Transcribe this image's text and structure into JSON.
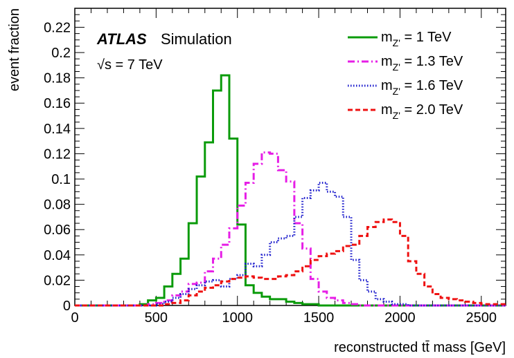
{
  "chart_data": {
    "type": "line",
    "style": "step-histogram",
    "xlabel": "reconstructed tt̄ mass [GeV]",
    "ylabel": "event fraction",
    "xlim": [
      0,
      2650
    ],
    "ylim": [
      0,
      0.235
    ],
    "x_ticks": [
      "0",
      "500",
      "1000",
      "1500",
      "2000",
      "2500"
    ],
    "y_ticks": [
      "0",
      "0.02",
      "0.04",
      "0.06",
      "0.08",
      "0.1",
      "0.12",
      "0.14",
      "0.16",
      "0.18",
      "0.2",
      "0.22"
    ],
    "grid": false,
    "legend_position": "top-right",
    "annotations": {
      "atlas": "ATLAS",
      "simulation": "Simulation",
      "energy": "√s = 7 TeV"
    },
    "bin_edges": [
      0,
      50,
      100,
      150,
      200,
      250,
      300,
      350,
      400,
      450,
      500,
      550,
      600,
      650,
      700,
      750,
      800,
      850,
      900,
      950,
      1000,
      1050,
      1100,
      1150,
      1200,
      1250,
      1300,
      1350,
      1400,
      1450,
      1500,
      1550,
      1600,
      1650,
      1700,
      1750,
      1800,
      1850,
      1900,
      1950,
      2000,
      2050,
      2100,
      2150,
      2200,
      2250,
      2300,
      2350,
      2400,
      2450,
      2500,
      2550,
      2600,
      2650
    ],
    "series": [
      {
        "name": "m_Z' = 1 TeV",
        "label_main": "m",
        "label_sub": "Z'",
        "label_rest": " = 1 TeV",
        "color": "#0a9b0a",
        "dash": "solid",
        "values": [
          0,
          0,
          0,
          0,
          0,
          0,
          0,
          0,
          0.001,
          0.004,
          0.006,
          0.015,
          0.025,
          0.037,
          0.065,
          0.102,
          0.129,
          0.17,
          0.182,
          0.132,
          0.064,
          0.016,
          0.01,
          0.007,
          0.005,
          0.005,
          0.003,
          0.002,
          0.001,
          0.001,
          0,
          0,
          0,
          0,
          0,
          0,
          0,
          0,
          0,
          0,
          0,
          0,
          0,
          0,
          0,
          0,
          0,
          0,
          0,
          0,
          0,
          0,
          0
        ]
      },
      {
        "name": "m_Z' = 1.3 TeV",
        "label_main": "m",
        "label_sub": "Z'",
        "label_rest": " = 1.3 TeV",
        "color": "#e61ee6",
        "dash": "dashdot",
        "values": [
          0,
          0,
          0,
          0,
          0,
          0,
          0,
          0,
          0,
          0.001,
          0.002,
          0.004,
          0.008,
          0.011,
          0.017,
          0.018,
          0.027,
          0.037,
          0.048,
          0.061,
          0.079,
          0.097,
          0.112,
          0.121,
          0.12,
          0.107,
          0.098,
          0.065,
          0.045,
          0.021,
          0.011,
          0.006,
          0.004,
          0.002,
          0.001,
          0,
          0,
          0,
          0,
          0,
          0,
          0,
          0,
          0,
          0,
          0,
          0,
          0,
          0,
          0,
          0,
          0,
          0
        ]
      },
      {
        "name": "m_Z' = 1.6 TeV",
        "label_main": "m",
        "label_sub": "Z'",
        "label_rest": " = 1.6 TeV",
        "color": "#1a1acc",
        "dash": "dotted",
        "values": [
          0,
          0,
          0,
          0,
          0,
          0,
          0,
          0,
          0,
          0,
          0.001,
          0.003,
          0.006,
          0.009,
          0.013,
          0.016,
          0.019,
          0.02,
          0.015,
          0.021,
          0.024,
          0.033,
          0.031,
          0.04,
          0.05,
          0.053,
          0.055,
          0.07,
          0.085,
          0.091,
          0.097,
          0.09,
          0.086,
          0.07,
          0.036,
          0.02,
          0.011,
          0.005,
          0.003,
          0.001,
          0.001,
          0,
          0,
          0,
          0,
          0,
          0,
          0,
          0,
          0,
          0,
          0,
          0
        ]
      },
      {
        "name": "m_Z' = 2.0 TeV",
        "label_main": "m",
        "label_sub": "Z'",
        "label_rest": " = 2.0 TeV",
        "color": "#ee1111",
        "dash": "dashed",
        "values": [
          0,
          0,
          0,
          0,
          0,
          0,
          0,
          0,
          0,
          0,
          0,
          0.001,
          0.002,
          0.004,
          0.008,
          0.011,
          0.014,
          0.016,
          0.019,
          0.021,
          0.022,
          0.023,
          0.022,
          0.021,
          0.021,
          0.023,
          0.024,
          0.027,
          0.031,
          0.036,
          0.039,
          0.041,
          0.043,
          0.047,
          0.048,
          0.055,
          0.062,
          0.066,
          0.068,
          0.066,
          0.055,
          0.035,
          0.025,
          0.015,
          0.009,
          0.006,
          0.005,
          0.004,
          0.003,
          0.002,
          0.001,
          0.001,
          0.001
        ]
      }
    ]
  }
}
